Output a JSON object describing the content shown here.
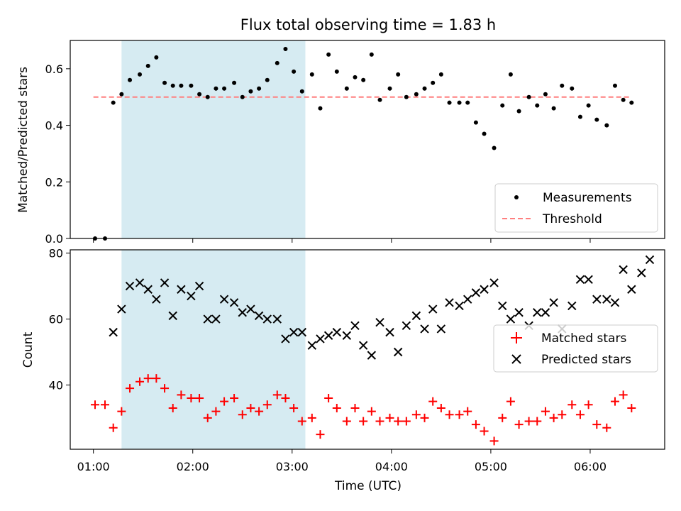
{
  "chart_data": [
    {
      "type": "scatter",
      "title": "Flux total observing time = 1.83 h",
      "xlabel": "",
      "ylabel": "Matched/Predicted stars",
      "xlim": [
        "00:46",
        "06:45"
      ],
      "ylim": [
        0.0,
        0.7
      ],
      "yticks": [
        0.0,
        0.2,
        0.4,
        0.6
      ],
      "yticklabels": [
        "0.0",
        "0.2",
        "0.4",
        "0.6"
      ],
      "highlight_span": {
        "x_start": "01:17",
        "x_end": "03:08",
        "color": "#add8e6"
      },
      "threshold": {
        "name": "Threshold",
        "value": 0.5,
        "x_start": "01:00",
        "x_end": "06:25",
        "color": "#ff7f7f"
      },
      "series": [
        {
          "name": "Measurements",
          "color": "#000000",
          "x": [
            "01:01",
            "01:07",
            "01:12",
            "01:17",
            "01:22",
            "01:28",
            "01:33",
            "01:38",
            "01:43",
            "01:48",
            "01:53",
            "01:59",
            "02:04",
            "02:09",
            "02:14",
            "02:19",
            "02:25",
            "02:30",
            "02:35",
            "02:40",
            "02:45",
            "02:51",
            "02:56",
            "03:01",
            "03:06",
            "03:12",
            "03:17",
            "03:22",
            "03:27",
            "03:33",
            "03:38",
            "03:43",
            "03:48",
            "03:53",
            "03:59",
            "04:04",
            "04:09",
            "04:15",
            "04:20",
            "04:25",
            "04:30",
            "04:35",
            "04:41",
            "04:46",
            "04:51",
            "04:56",
            "05:02",
            "05:07",
            "05:12",
            "05:17",
            "05:23",
            "05:28",
            "05:33",
            "05:38",
            "05:43",
            "05:49",
            "05:54",
            "05:59",
            "06:04",
            "06:10",
            "06:15",
            "06:20",
            "06:25"
          ],
          "y": [
            0.0,
            0.0,
            0.48,
            0.51,
            0.56,
            0.58,
            0.61,
            0.64,
            0.55,
            0.54,
            0.54,
            0.54,
            0.51,
            0.5,
            0.53,
            0.53,
            0.55,
            0.5,
            0.52,
            0.53,
            0.56,
            0.62,
            0.67,
            0.59,
            0.52,
            0.58,
            0.46,
            0.65,
            0.59,
            0.53,
            0.57,
            0.56,
            0.65,
            0.49,
            0.53,
            0.58,
            0.5,
            0.51,
            0.53,
            0.55,
            0.58,
            0.48,
            0.48,
            0.48,
            0.41,
            0.37,
            0.32,
            0.47,
            0.58,
            0.45,
            0.5,
            0.47,
            0.51,
            0.46,
            0.54,
            0.53,
            0.43,
            0.47,
            0.42,
            0.4,
            0.54,
            0.49,
            0.48
          ]
        }
      ],
      "legend": {
        "placement": "lower-right",
        "entries": [
          "Measurements",
          "Threshold"
        ]
      }
    },
    {
      "type": "scatter",
      "title": "",
      "xlabel": "Time (UTC)",
      "ylabel": "Count",
      "xlim": [
        "00:46",
        "06:45"
      ],
      "ylim": [
        20.5,
        81
      ],
      "xticks": [
        "01:00",
        "02:00",
        "03:00",
        "04:00",
        "05:00",
        "06:00"
      ],
      "xticklabels": [
        "01:00",
        "02:00",
        "03:00",
        "04:00",
        "05:00",
        "06:00"
      ],
      "yticks": [
        40,
        60,
        80
      ],
      "yticklabels": [
        "40",
        "60",
        "80"
      ],
      "highlight_span": {
        "x_start": "01:17",
        "x_end": "03:08",
        "color": "#add8e6"
      },
      "series": [
        {
          "name": "Matched stars",
          "marker": "+",
          "color": "#ff0000",
          "x": [
            "01:01",
            "01:07",
            "01:12",
            "01:17",
            "01:22",
            "01:28",
            "01:33",
            "01:38",
            "01:43",
            "01:48",
            "01:53",
            "01:59",
            "02:04",
            "02:09",
            "02:14",
            "02:19",
            "02:25",
            "02:30",
            "02:35",
            "02:40",
            "02:45",
            "02:51",
            "02:56",
            "03:01",
            "03:06",
            "03:12",
            "03:17",
            "03:22",
            "03:27",
            "03:33",
            "03:38",
            "03:43",
            "03:48",
            "03:53",
            "03:59",
            "04:04",
            "04:09",
            "04:15",
            "04:20",
            "04:25",
            "04:30",
            "04:35",
            "04:41",
            "04:46",
            "04:51",
            "04:56",
            "05:02",
            "05:07",
            "05:12",
            "05:17",
            "05:23",
            "05:28",
            "05:33",
            "05:38",
            "05:43",
            "05:49",
            "05:54",
            "05:59",
            "06:04",
            "06:10",
            "06:15",
            "06:20",
            "06:25"
          ],
          "y": [
            34,
            34,
            27,
            32,
            39,
            41,
            42,
            42,
            39,
            33,
            37,
            36,
            36,
            30,
            32,
            35,
            36,
            31,
            33,
            32,
            34,
            37,
            36,
            33,
            29,
            30,
            25,
            36,
            33,
            29,
            33,
            29,
            32,
            29,
            30,
            29,
            29,
            31,
            30,
            35,
            33,
            31,
            31,
            32,
            28,
            26,
            23,
            30,
            35,
            28,
            29,
            29,
            32,
            30,
            31,
            34,
            31,
            34,
            28,
            27,
            35,
            37,
            33
          ]
        },
        {
          "name": "Predicted stars",
          "marker": "x",
          "color": "#000000",
          "x": [
            "01:12",
            "01:17",
            "01:22",
            "01:28",
            "01:33",
            "01:38",
            "01:43",
            "01:48",
            "01:53",
            "01:59",
            "02:04",
            "02:09",
            "02:14",
            "02:19",
            "02:25",
            "02:30",
            "02:35",
            "02:40",
            "02:45",
            "02:51",
            "02:56",
            "03:01",
            "03:06",
            "03:12",
            "03:17",
            "03:22",
            "03:27",
            "03:33",
            "03:38",
            "03:43",
            "03:48",
            "03:53",
            "03:59",
            "04:04",
            "04:09",
            "04:15",
            "04:20",
            "04:25",
            "04:30",
            "04:35",
            "04:41",
            "04:46",
            "04:51",
            "04:56",
            "05:02",
            "05:07",
            "05:12",
            "05:17",
            "05:23",
            "05:28",
            "05:33",
            "05:38",
            "05:43",
            "05:49",
            "05:54",
            "05:59",
            "06:04",
            "06:10",
            "06:15",
            "06:20",
            "06:25",
            "06:31",
            "06:36"
          ],
          "y": [
            56,
            63,
            70,
            71,
            69,
            66,
            71,
            61,
            69,
            67,
            70,
            60,
            60,
            66,
            65,
            62,
            63,
            61,
            60,
            60,
            54,
            56,
            56,
            52,
            54,
            55,
            56,
            55,
            58,
            52,
            49,
            59,
            56,
            50,
            58,
            61,
            57,
            63,
            57,
            65,
            64,
            66,
            68,
            69,
            71,
            64,
            60,
            62,
            58,
            62,
            62,
            65,
            57,
            64,
            72,
            72,
            66,
            66,
            65,
            75,
            69,
            74,
            78
          ]
        }
      ],
      "legend": {
        "placement": "right",
        "entries": [
          "Matched stars",
          "Predicted stars"
        ]
      }
    }
  ]
}
